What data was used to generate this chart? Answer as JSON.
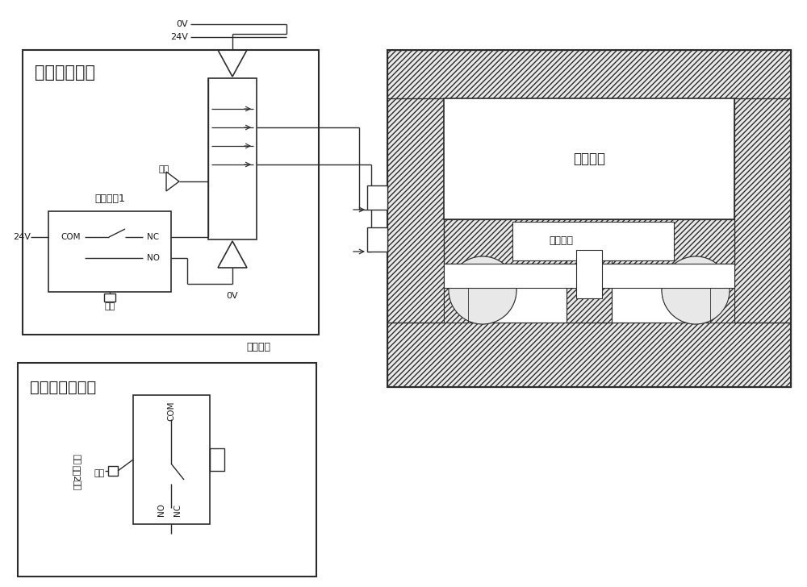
{
  "bg_color": "#ffffff",
  "lc": "#2c2c2c",
  "title_main": "主盘供气模块",
  "title_tool": "工具盘配合模块",
  "label_safety1": "安全开关1",
  "label_touch": "触头",
  "label_touch2": "触头",
  "label_qiyuan": "气源",
  "label_0v_top": "0V",
  "label_24v_top": "24V",
  "label_0v_bot": "0V",
  "label_24v_left": "24V",
  "label_com": "COM",
  "label_nc": "NC",
  "label_no": "NO",
  "label_com2": "COM",
  "label_nc2": "NC",
  "label_no2": "NO",
  "label_locking": "锁紧缸体",
  "label_release": "释放缸体",
  "label_probe": "连接探针",
  "label_safety_rotated": "安全开关2触板",
  "figsize": [
    10.0,
    7.28
  ],
  "dpi": 100
}
